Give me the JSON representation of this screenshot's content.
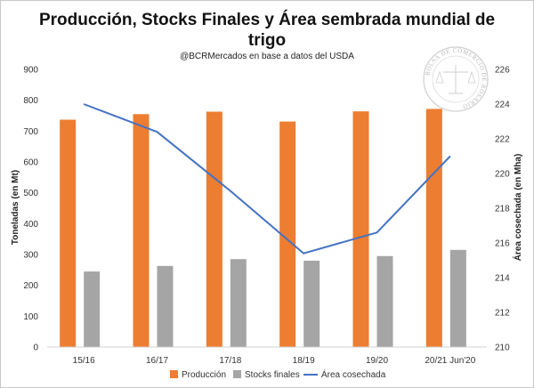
{
  "chart_data": {
    "type": "bar",
    "title_line1": "Producción, Stocks Finales y Área sembrada mundial de",
    "title_line2": "trigo",
    "subtitle": "@BCRMercados en base a datos del USDA",
    "ylabel_left": "Toneladas (en Mt)",
    "ylabel_right": "Área cosechada (en Mha)",
    "categories": [
      "15/16",
      "16/17",
      "17/18",
      "18/19",
      "19/20",
      "20/21 Jun'20"
    ],
    "y_left_range": [
      0,
      900
    ],
    "y_left_ticks": [
      "0",
      "100",
      "200",
      "300",
      "400",
      "500",
      "600",
      "700",
      "800",
      "900"
    ],
    "y_right_range": [
      210,
      226
    ],
    "y_right_ticks": [
      "210",
      "212",
      "214",
      "216",
      "218",
      "220",
      "222",
      "224",
      "226"
    ],
    "grid": false,
    "legend_position": "bottom",
    "series": [
      {
        "name": "Producción",
        "type": "bar",
        "axis": "left",
        "color": "#ED7D31",
        "values": [
          737,
          755,
          763,
          731,
          764,
          772
        ]
      },
      {
        "name": "Stocks finales",
        "type": "bar",
        "axis": "left",
        "color": "#A5A5A5",
        "values": [
          245,
          263,
          285,
          280,
          295,
          315
        ]
      },
      {
        "name": "Área cosechada",
        "type": "line",
        "axis": "right",
        "color": "#4472C4",
        "values": [
          224.0,
          222.4,
          219.0,
          215.4,
          216.6,
          221.0
        ]
      }
    ],
    "seal_text": "BOLSA DE COMERCIO DE ROSARIO"
  }
}
